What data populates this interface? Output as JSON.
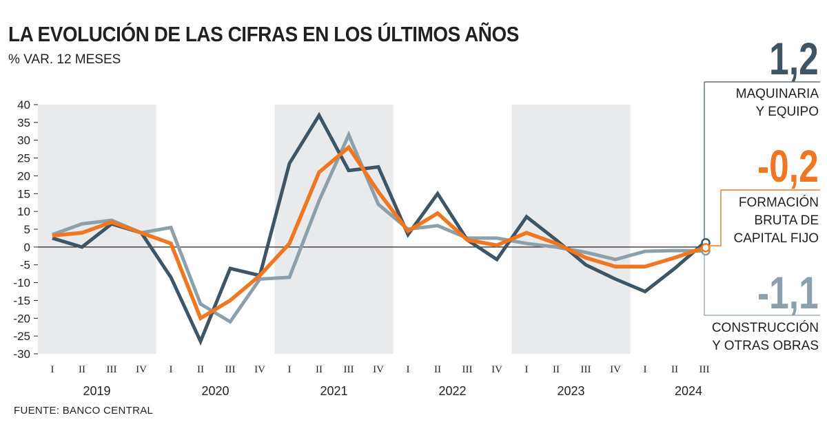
{
  "title": "LA EVOLUCIÓN DE LAS CIFRAS EN LOS ÚLTIMOS AÑOS",
  "subtitle": "% VAR. 12 MESES",
  "source": "FUENTE: BANCO CENTRAL",
  "chart_data": {
    "type": "line",
    "title": "LA EVOLUCIÓN DE LAS CIFRAS EN LOS ÚLTIMOS AÑOS",
    "subtitle": "% VAR. 12 MESES",
    "quarters": [
      "I",
      "II",
      "III",
      "IV",
      "I",
      "II",
      "III",
      "IV",
      "I",
      "II",
      "III",
      "IV",
      "I",
      "II",
      "III",
      "IV",
      "I",
      "II",
      "III",
      "IV",
      "I",
      "II",
      "III"
    ],
    "years": [
      "2019",
      "2020",
      "2021",
      "2022",
      "2023",
      "2024"
    ],
    "shaded_years": [
      "2019",
      "2021",
      "2023"
    ],
    "ylim": [
      -30,
      40
    ],
    "yticks": [
      40,
      35,
      30,
      25,
      20,
      15,
      10,
      5,
      0,
      -5,
      -10,
      -15,
      -20,
      -25,
      -30
    ],
    "grid": false,
    "series": [
      {
        "name": "CONSTRUCCIÓN Y OTRAS OBRAS",
        "color": "#8ba0aa",
        "values": [
          3.5,
          6.5,
          7.5,
          4,
          5.5,
          -16,
          -21,
          -9,
          -8.5,
          13,
          31.5,
          12,
          5,
          6,
          2.5,
          2.5,
          1,
          0,
          -1.5,
          -3.5,
          -1.2,
          -1,
          -1.1
        ]
      },
      {
        "name": "MAQUINARIA Y EQUIPO",
        "color": "#3d5564",
        "values": [
          2.5,
          0,
          6.5,
          4,
          -8.5,
          -26.5,
          -6,
          -8,
          23.5,
          37,
          21.5,
          22.5,
          3.5,
          15,
          2,
          -3.5,
          8.5,
          2,
          -5,
          -9,
          -12.5,
          -6,
          1.2
        ]
      },
      {
        "name": "FORMACIÓN BRUTA DE CAPITAL FIJO",
        "color": "#f07722",
        "values": [
          3.2,
          4,
          7,
          4,
          1,
          -20,
          -15,
          -8,
          1,
          21,
          28,
          15.5,
          4.5,
          9.5,
          2,
          0.5,
          4,
          1,
          -3,
          -5.5,
          -5.5,
          -3,
          -0.2
        ]
      }
    ],
    "annotations": [
      {
        "value": "1,2",
        "label": "MAQUINARIA\nY EQUIPO",
        "color": "#3d5564"
      },
      {
        "value": "-0,2",
        "label": "FORMACIÓN\nBRUTA DE\nCAPITAL FIJO",
        "color": "#f07722"
      },
      {
        "value": "-1,1",
        "label": "CONSTRUCCIÓN\nY OTRAS OBRAS",
        "color": "#8ba0aa"
      }
    ]
  }
}
